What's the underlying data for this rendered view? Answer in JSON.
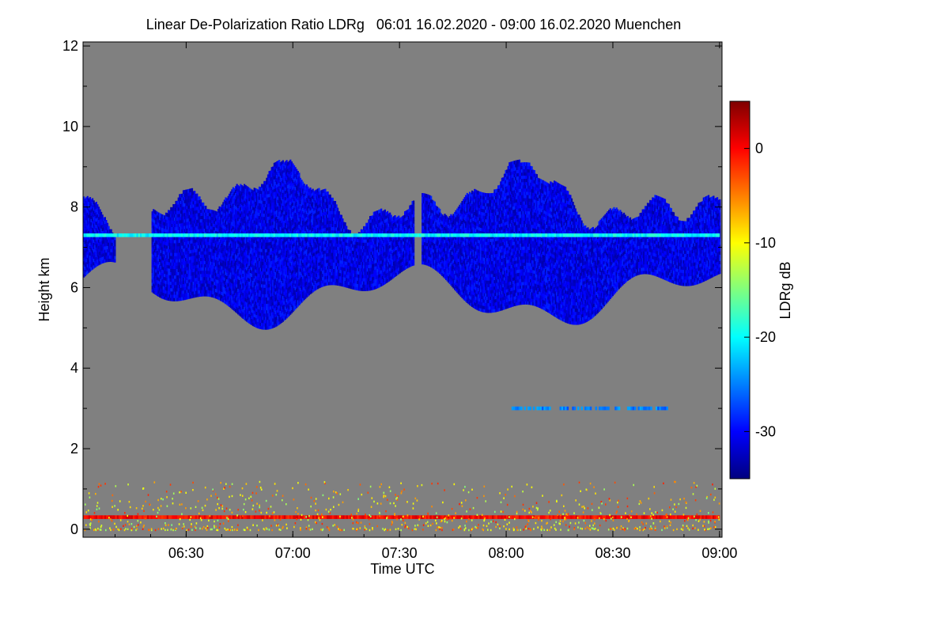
{
  "chart_data": {
    "type": "heatmap",
    "title": "Linear De-Polarization Ratio LDRg   06:01 16.02.2020 - 09:00 16.02.2020 Muenchen",
    "xlabel": "Time UTC",
    "ylabel": "Height km",
    "x_range_utc": [
      "06:01",
      "09:00"
    ],
    "x_ticks": [
      "06:30",
      "07:00",
      "07:30",
      "08:00",
      "08:30",
      "09:00"
    ],
    "x_tick_minutes": [
      29,
      59,
      89,
      119,
      149,
      179
    ],
    "ylim": [
      -0.2,
      12.1
    ],
    "y_ticks": [
      0,
      2,
      4,
      6,
      8,
      10,
      12
    ],
    "colorbar": {
      "label": "LDRg dB",
      "range": [
        -35,
        5
      ],
      "ticks": [
        0,
        -10,
        -20,
        -30
      ],
      "colormap": [
        "#00007f",
        "#0000ff",
        "#007fff",
        "#00ffff",
        "#7fff7f",
        "#ffff00",
        "#ff7f00",
        "#ff0000",
        "#7f0000"
      ]
    },
    "background_color": "#808080",
    "regions": [
      {
        "description": "cirrus cloud",
        "time_start": "06:01",
        "time_end": "09:00",
        "height_bottom_km": 4.9,
        "height_top_km": 9.1,
        "ldr_db_approx": -31
      },
      {
        "description": "layer at ~7.3 km",
        "time_start": "06:01",
        "time_end": "09:00",
        "height_km": 7.3,
        "ldr_db_approx": -20
      },
      {
        "description": "layer near ground",
        "time_start": "06:01",
        "time_end": "09:00",
        "height_km": 0.3,
        "ldr_db_approx": 0
      },
      {
        "description": "scattered near-ground echoes",
        "time_start": "06:01",
        "time_end": "09:00",
        "height_bottom_km": 0.0,
        "height_top_km": 1.2,
        "ldr_db_approx": -8
      },
      {
        "description": "thin layer at ~3 km",
        "time_start": "08:01",
        "time_end": "08:46",
        "height_km": 3.0,
        "ldr_db_approx": -25
      }
    ]
  }
}
